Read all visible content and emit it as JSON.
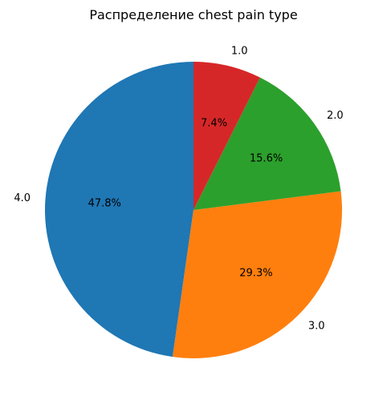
{
  "chart_data": {
    "type": "pie",
    "title": "Распределение chest pain type",
    "categories": [
      "4.0",
      "3.0",
      "2.0",
      "1.0"
    ],
    "values": [
      47.8,
      29.3,
      15.6,
      7.4
    ],
    "percent_labels": [
      "47.8%",
      "29.3%",
      "15.6%",
      "7.4%"
    ],
    "colors": [
      "#1f77b4",
      "#ff7f0e",
      "#2ca02c",
      "#d62728"
    ],
    "start_angle_deg": 90,
    "direction": "counterclockwise",
    "legend": "none"
  }
}
